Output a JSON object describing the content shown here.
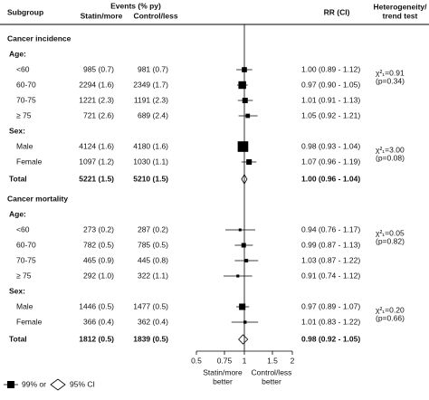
{
  "chart_data": {
    "type": "forest",
    "headers": {
      "subgroup": "Subgroup",
      "events": "Events (% py)",
      "statin": "Statin/more",
      "control": "Control/less",
      "rr": "RR (CI)",
      "heterogeneity": [
        "Heterogeneity/",
        "trend test"
      ]
    },
    "sections": [
      {
        "title": "Cancer incidence",
        "groups": [
          {
            "label": "Age:",
            "test": [
              "χ²₁=0.91",
              "(p=0.34)"
            ],
            "rows": [
              {
                "label": "<60",
                "statin": "985 (0.7)",
                "control": "981 (0.7)",
                "rr": 1.0,
                "ci": [
                  0.89,
                  1.12
                ],
                "rr_label": "1.00 (0.89 - 1.12)"
              },
              {
                "label": "60-70",
                "statin": "2294 (1.6)",
                "control": "2349 (1.7)",
                "rr": 0.97,
                "ci": [
                  0.9,
                  1.05
                ],
                "rr_label": "0.97 (0.90 - 1.05)"
              },
              {
                "label": "70-75",
                "statin": "1221 (2.3)",
                "control": "1191 (2.3)",
                "rr": 1.01,
                "ci": [
                  0.91,
                  1.13
                ],
                "rr_label": "1.01 (0.91 - 1.13)"
              },
              {
                "label": "≥ 75",
                "statin": "721 (2.6)",
                "control": "689 (2.4)",
                "rr": 1.05,
                "ci": [
                  0.92,
                  1.21
                ],
                "rr_label": "1.05 (0.92 - 1.21)"
              }
            ]
          },
          {
            "label": "Sex:",
            "test": [
              "χ²₁=3.00",
              "(p=0.08)"
            ],
            "rows": [
              {
                "label": "Male",
                "statin": "4124 (1.6)",
                "control": "4180 (1.6)",
                "rr": 0.98,
                "ci": [
                  0.93,
                  1.04
                ],
                "rr_label": "0.98 (0.93 - 1.04)"
              },
              {
                "label": "Female",
                "statin": "1097 (1.2)",
                "control": "1030 (1.1)",
                "rr": 1.07,
                "ci": [
                  0.96,
                  1.19
                ],
                "rr_label": "1.07 (0.96 - 1.19)"
              }
            ]
          }
        ],
        "total": {
          "label": "Total",
          "statin": "5221 (1.5)",
          "control": "5210 (1.5)",
          "rr": 1.0,
          "ci": [
            0.96,
            1.04
          ],
          "rr_label": "1.00 (0.96 - 1.04)"
        }
      },
      {
        "title": "Cancer mortality",
        "groups": [
          {
            "label": "Age:",
            "test": [
              "χ²₁=0.05",
              "(p=0.82)"
            ],
            "rows": [
              {
                "label": "<60",
                "statin": "273 (0.2)",
                "control": "287 (0.2)",
                "rr": 0.94,
                "ci": [
                  0.76,
                  1.17
                ],
                "rr_label": "0.94 (0.76 - 1.17)"
              },
              {
                "label": "60-70",
                "statin": "782 (0.5)",
                "control": "785 (0.5)",
                "rr": 0.99,
                "ci": [
                  0.87,
                  1.13
                ],
                "rr_label": "0.99 (0.87 - 1.13)"
              },
              {
                "label": "70-75",
                "statin": "465 (0.9)",
                "control": "445 (0.8)",
                "rr": 1.03,
                "ci": [
                  0.87,
                  1.22
                ],
                "rr_label": "1.03 (0.87 - 1.22)"
              },
              {
                "label": "≥ 75",
                "statin": "292 (1.0)",
                "control": "322 (1.1)",
                "rr": 0.91,
                "ci": [
                  0.74,
                  1.12
                ],
                "rr_label": "0.91 (0.74 - 1.12)"
              }
            ]
          },
          {
            "label": "Sex:",
            "test": [
              "χ²₁=0.20",
              "(p=0.66)"
            ],
            "rows": [
              {
                "label": "Male",
                "statin": "1446 (0.5)",
                "control": "1477 (0.5)",
                "rr": 0.97,
                "ci": [
                  0.89,
                  1.07
                ],
                "rr_label": "0.97 (0.89 - 1.07)"
              },
              {
                "label": "Female",
                "statin": "366 (0.4)",
                "control": "362 (0.4)",
                "rr": 1.01,
                "ci": [
                  0.83,
                  1.22
                ],
                "rr_label": "1.01 (0.83 - 1.22)"
              }
            ]
          }
        ],
        "total": {
          "label": "Total",
          "statin": "1812 (0.5)",
          "control": "1839 (0.5)",
          "rr": 0.98,
          "ci": [
            0.92,
            1.05
          ],
          "rr_label": "0.98 (0.92 - 1.05)"
        }
      }
    ],
    "xlim": [
      0.5,
      2
    ],
    "xticks": [
      0.5,
      0.75,
      1,
      1.5,
      2
    ],
    "log_scale": true,
    "reference": 1,
    "x_labels": [
      [
        "Statin/more",
        "better"
      ],
      [
        "Control/less",
        "better"
      ]
    ],
    "legend": [
      "99% or",
      "95% CI"
    ],
    "color": "#000000"
  }
}
